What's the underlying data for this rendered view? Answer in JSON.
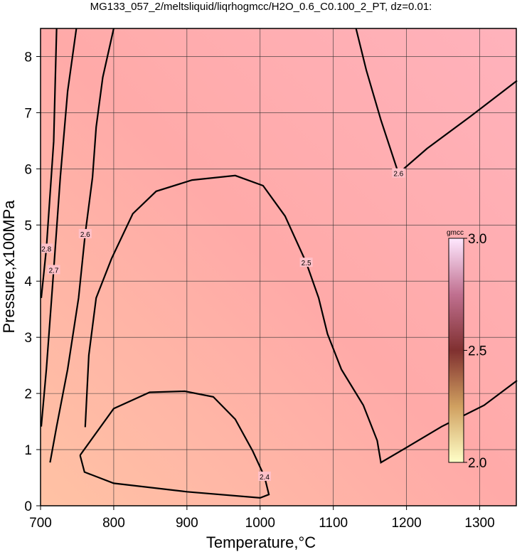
{
  "chart_data": {
    "type": "contour",
    "title": "MG133_057_2/meltsliquid/liqrhogmcc/H2O_0.6_C0.100_2_PT, dz=0.01:",
    "x_label": "Temperature,°C",
    "y_label": "Pressure,x100MPa",
    "xlim": [
      700,
      1350
    ],
    "ylim": [
      0,
      8.5
    ],
    "xticks": [
      700,
      800,
      900,
      1000,
      1100,
      1200,
      1300
    ],
    "yticks": [
      0,
      1,
      2,
      3,
      4,
      5,
      6,
      7,
      8
    ],
    "grid": true,
    "colorbar": {
      "label": "gmcc",
      "lim": [
        2.0,
        3.0
      ],
      "ticks": [
        {
          "value": 2.0,
          "label": "2.0"
        },
        {
          "value": 2.5,
          "label": "2.5"
        },
        {
          "value": 3.0,
          "label": "3.0"
        }
      ]
    },
    "contours": [
      {
        "level": 2.4,
        "x": [
          754,
          800,
          849,
          897,
          936,
          966,
          990,
          1006,
          1012,
          1000,
          900,
          800,
          760,
          754
        ],
        "y": [
          0.9,
          1.73,
          2.02,
          2.04,
          1.94,
          1.54,
          0.97,
          0.52,
          0.2,
          0.14,
          0.25,
          0.4,
          0.6,
          0.9
        ]
      },
      {
        "level": 2.5,
        "x": [
          761,
          766,
          776,
          797,
          826,
          858,
          907,
          966,
          1004,
          1034,
          1063,
          1080,
          1092,
          1111,
          1141,
          1160,
          1165,
          1199,
          1248,
          1306,
          1351
        ],
        "y": [
          1.4,
          2.68,
          3.7,
          4.4,
          5.2,
          5.6,
          5.8,
          5.88,
          5.7,
          5.16,
          4.33,
          3.7,
          3.06,
          2.43,
          1.79,
          1.16,
          0.77,
          1.03,
          1.41,
          1.79,
          2.23
        ]
      },
      {
        "level": 2.6,
        "x": [
          800,
          785,
          776,
          771,
          761,
          752,
          737,
          722,
          713
        ],
        "y": [
          8.5,
          7.63,
          6.74,
          5.85,
          4.84,
          3.7,
          2.43,
          1.41,
          0.77
        ]
      },
      {
        "level": 2.6,
        "x": [
          1131,
          1145,
          1165,
          1189,
          1228,
          1287,
          1351
        ],
        "y": [
          8.5,
          7.76,
          6.87,
          5.92,
          6.36,
          6.93,
          7.57
        ]
      },
      {
        "level": 2.7,
        "x": [
          749,
          737,
          727,
          718,
          708,
          701
        ],
        "y": [
          8.5,
          7.38,
          5.85,
          4.2,
          2.43,
          1.41
        ]
      },
      {
        "level": 2.8,
        "x": [
          722,
          718,
          708,
          701
        ],
        "y": [
          8.5,
          6.49,
          4.58,
          3.7
        ]
      }
    ]
  }
}
